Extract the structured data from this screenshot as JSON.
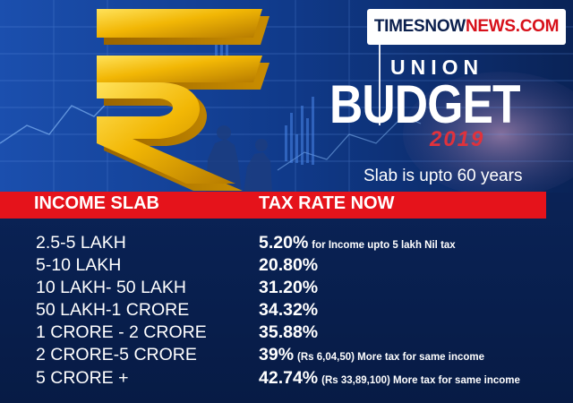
{
  "brand": {
    "part1": "TIMESNOW",
    "part2": "NEWS.COM"
  },
  "budget": {
    "union": "UNION",
    "title": "BUDGET",
    "year": "2019"
  },
  "subtitle": "Slab is upto 60 years",
  "table": {
    "headers": [
      "INCOME SLAB",
      "TAX RATE NOW"
    ],
    "rows": [
      {
        "slab": "2.5-5 LAKH",
        "rate": "5.20%",
        "note": "for Income upto 5 lakh Nil tax"
      },
      {
        "slab": "5-10 LAKH",
        "rate": "20.80%",
        "note": ""
      },
      {
        "slab": "10 LAKH- 50 LAKH",
        "rate": "31.20%",
        "note": ""
      },
      {
        "slab": "50 LAKH-1 CRORE",
        "rate": "34.32%",
        "note": ""
      },
      {
        "slab": "1 CRORE - 2 CRORE",
        "rate": "35.88%",
        "note": ""
      },
      {
        "slab": "2 CRORE-5 CRORE",
        "rate": "39%",
        "note": "(Rs 6,04,50) More tax for same income"
      },
      {
        "slab": "5 CRORE +",
        "rate": "42.74%",
        "note": "(Rs 33,89,100) More tax for same income"
      }
    ]
  },
  "colors": {
    "accent_red": "#e5131b",
    "background_navy": "#0a2357",
    "rupee_gold": "#f2b705",
    "text": "#ffffff"
  },
  "icons": [
    "rupee-symbol-icon",
    "rising-arrow-icon"
  ]
}
